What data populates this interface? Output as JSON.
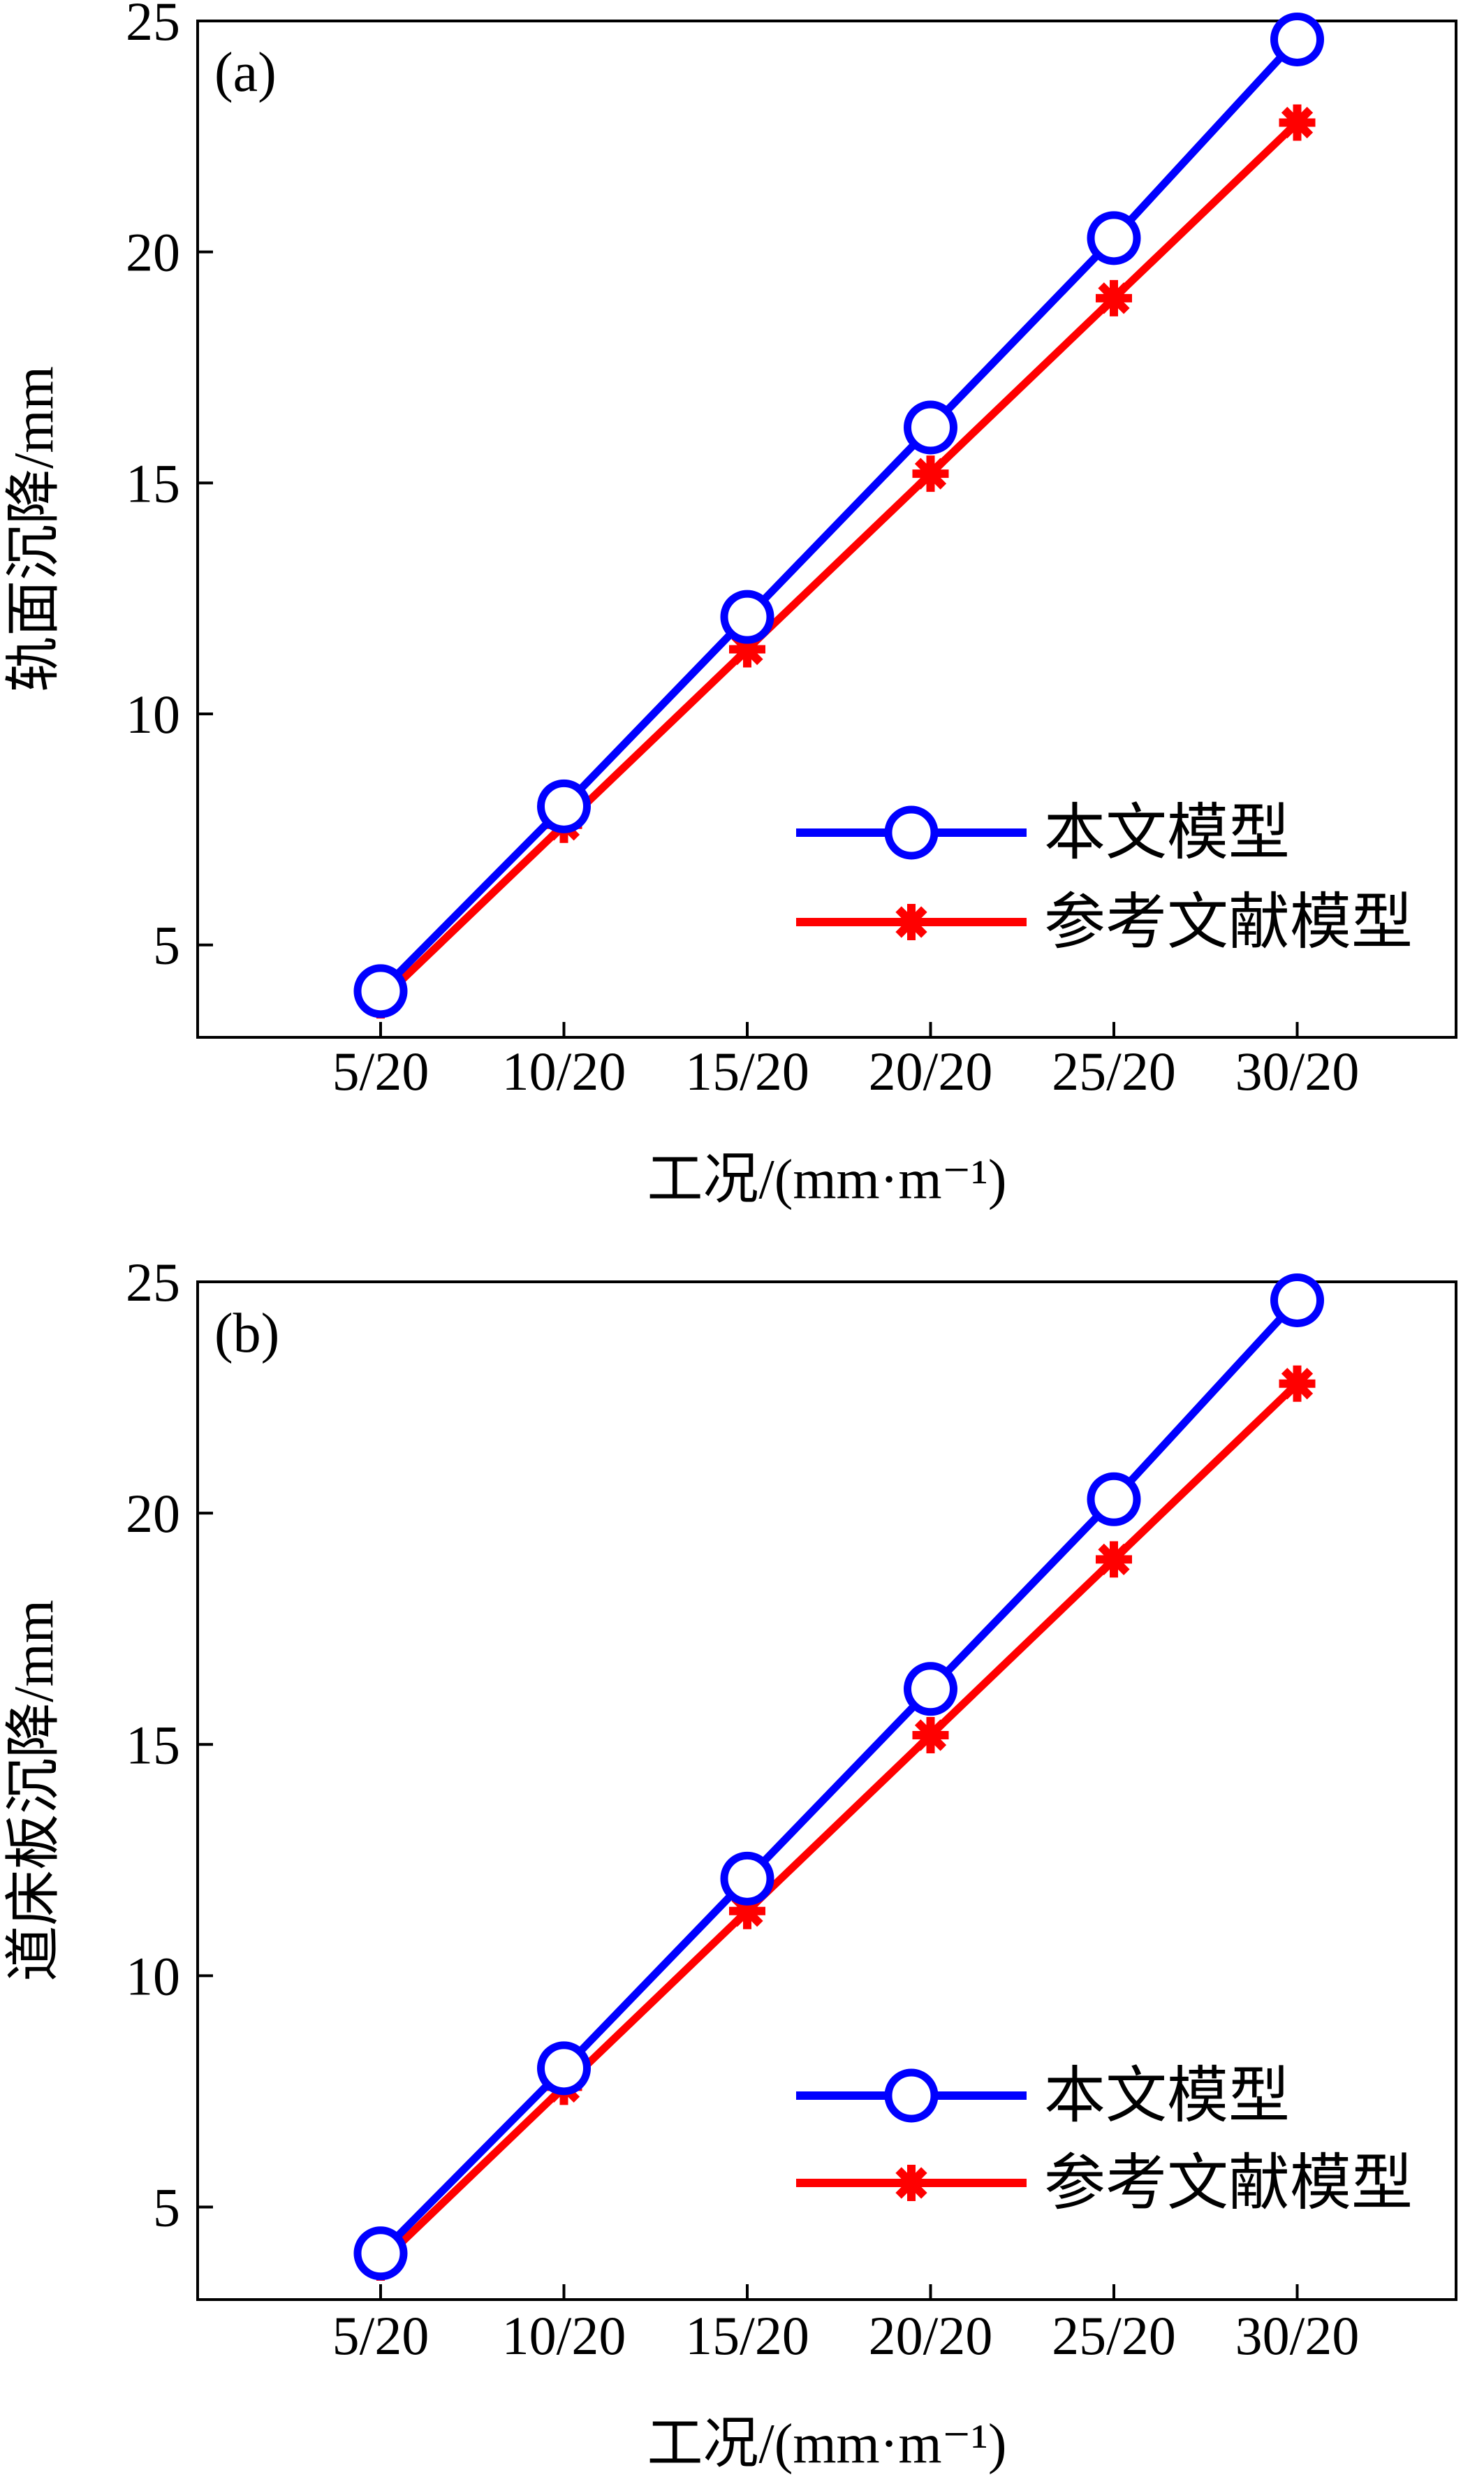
{
  "chart_data": [
    {
      "type": "line",
      "panel_label": "(a)",
      "categories": [
        "5/20",
        "10/20",
        "15/20",
        "20/20",
        "25/20",
        "30/20"
      ],
      "xlabel": "工况/(mm·m⁻¹)",
      "ylabel": "轨面沉降/mm",
      "ylim": [
        3,
        25
      ],
      "yticks": [
        5,
        10,
        15,
        20,
        25
      ],
      "legend_position": "lower-right",
      "grid": false,
      "series": [
        {
          "name": "本文模型",
          "color": "#0000ff",
          "marker": "circle",
          "values": [
            4.0,
            8.0,
            12.1,
            16.2,
            20.3,
            24.6
          ]
        },
        {
          "name": "参考文献模型",
          "color": "#ff0000",
          "marker": "asterisk",
          "values": [
            3.8,
            7.6,
            11.4,
            15.2,
            19.0,
            22.8
          ]
        }
      ]
    },
    {
      "type": "line",
      "panel_label": "(b)",
      "categories": [
        "5/20",
        "10/20",
        "15/20",
        "20/20",
        "25/20",
        "30/20"
      ],
      "xlabel": "工况/(mm·m⁻¹)",
      "ylabel": "道床板沉降/mm",
      "ylim": [
        3,
        25
      ],
      "yticks": [
        5,
        10,
        15,
        20,
        25
      ],
      "legend_position": "lower-right",
      "grid": false,
      "series": [
        {
          "name": "本文模型",
          "color": "#0000ff",
          "marker": "circle",
          "values": [
            4.0,
            8.0,
            12.1,
            16.2,
            20.3,
            24.6
          ]
        },
        {
          "name": "参考文献模型",
          "color": "#ff0000",
          "marker": "asterisk",
          "values": [
            3.8,
            7.6,
            11.4,
            15.2,
            19.0,
            22.8
          ]
        }
      ]
    }
  ]
}
